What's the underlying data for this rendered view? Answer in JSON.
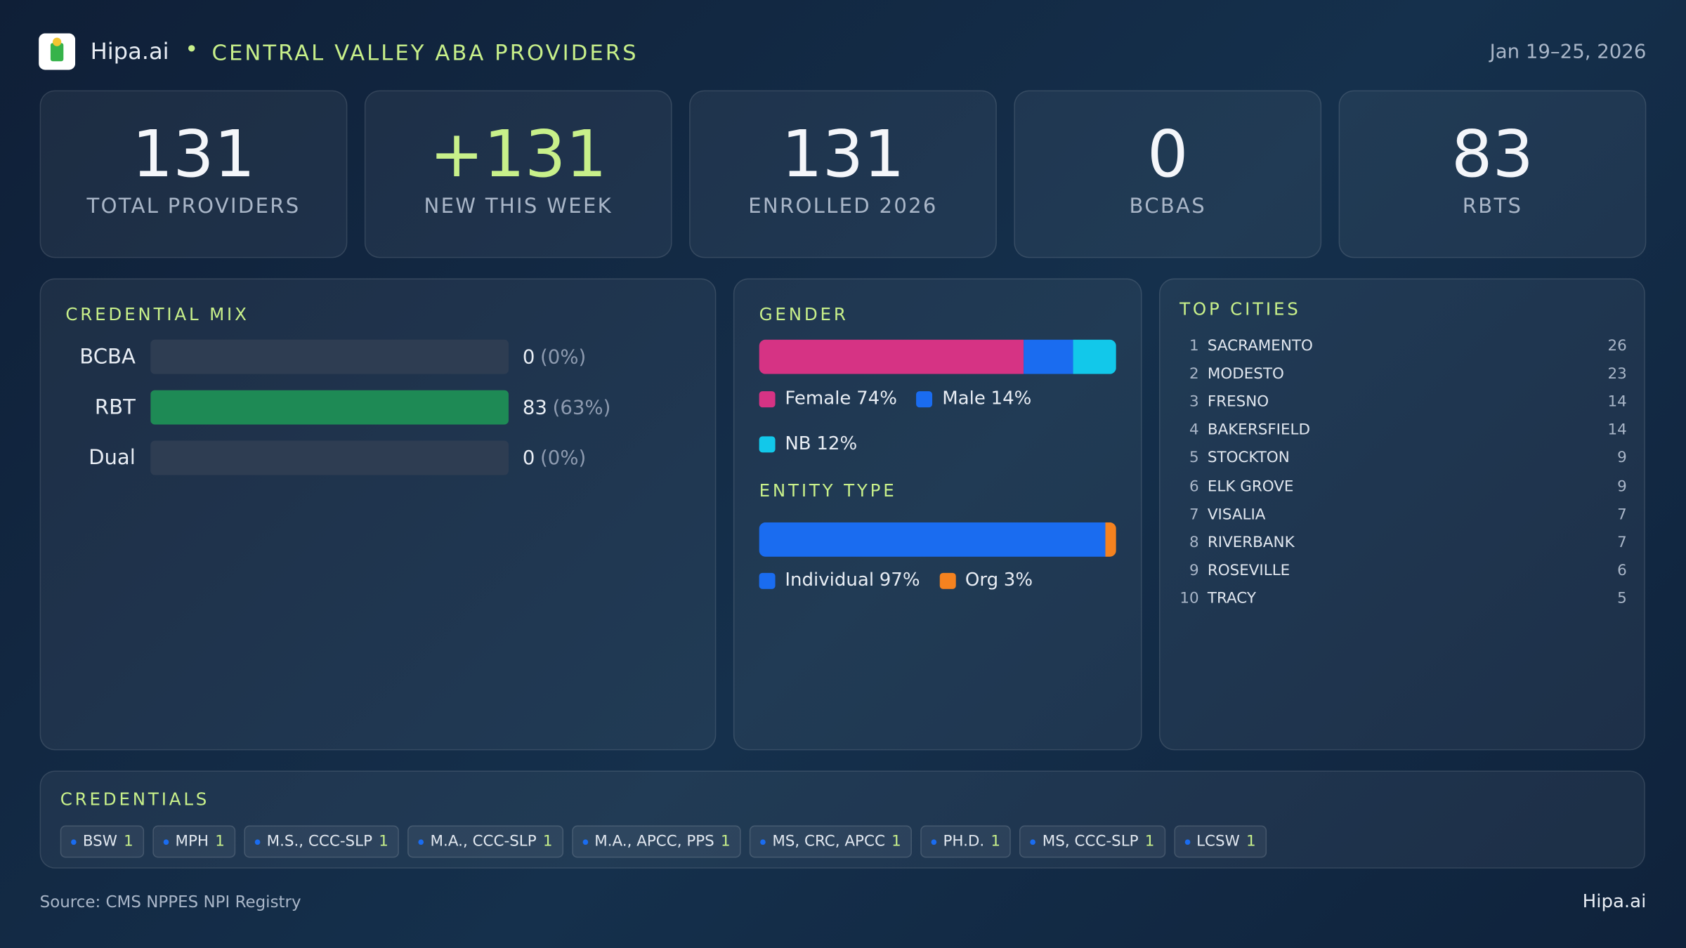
{
  "header": {
    "brand": "Hipa.ai",
    "title": "CENTRAL VALLEY ABA PROVIDERS",
    "date": "Jan 19–25, 2026"
  },
  "kpis": [
    {
      "value": 131,
      "label": "TOTAL PROVIDERS"
    },
    {
      "value": "+131",
      "label": "NEW THIS WEEK"
    },
    {
      "value": 131,
      "label": "ENROLLED 2026"
    },
    {
      "value": 0,
      "label": "BCBAS"
    },
    {
      "value": 83,
      "label": "RBTS"
    }
  ],
  "credential_mix": {
    "title": "CREDENTIAL MIX",
    "bar_color": "#1e8a55",
    "rows": [
      {
        "name": "BCBA",
        "value": 0,
        "pct_label": "(0%)"
      },
      {
        "name": "RBT",
        "value": 83,
        "pct_label": "(63%)"
      },
      {
        "name": "Dual",
        "value": 0,
        "pct_label": "(0%)"
      }
    ]
  },
  "gender": {
    "title": "GENDER",
    "segments": [
      {
        "name": "Female",
        "value": 74,
        "label": "74%",
        "color": "#d63384"
      },
      {
        "name": "Male",
        "value": 14,
        "label": "14%",
        "color": "#1a6cf0"
      },
      {
        "name": "NB",
        "value": 12,
        "label": "12%",
        "color": "#12c8ea"
      }
    ]
  },
  "entity_type": {
    "title": "ENTITY TYPE",
    "segments": [
      {
        "name": "Individual",
        "value": 97,
        "label": "97%",
        "color": "#1a6cf0"
      },
      {
        "name": "Org",
        "value": 3,
        "label": "3%",
        "color": "#f5821f"
      }
    ]
  },
  "top_cities": {
    "title": "TOP CITIES",
    "rows": [
      {
        "rank": 1,
        "name": "SACRAMENTO",
        "count": 26
      },
      {
        "rank": 2,
        "name": "MODESTO",
        "count": 23
      },
      {
        "rank": 3,
        "name": "FRESNO",
        "count": 14
      },
      {
        "rank": 4,
        "name": "BAKERSFIELD",
        "count": 14
      },
      {
        "rank": 5,
        "name": "STOCKTON",
        "count": 9
      },
      {
        "rank": 6,
        "name": "ELK GROVE",
        "count": 9
      },
      {
        "rank": 7,
        "name": "VISALIA",
        "count": 7
      },
      {
        "rank": 8,
        "name": "RIVERBANK",
        "count": 7
      },
      {
        "rank": 9,
        "name": "ROSEVILLE",
        "count": 6
      },
      {
        "rank": 10,
        "name": "TRACY",
        "count": 5
      }
    ]
  },
  "credentials": {
    "title": "CREDENTIALS",
    "chips": [
      {
        "name": "BSW",
        "count": 1
      },
      {
        "name": "MPH",
        "count": 1
      },
      {
        "name": "M.S., CCC-SLP",
        "count": 1
      },
      {
        "name": "M.A., CCC-SLP",
        "count": 1
      },
      {
        "name": "M.A., APCC, PPS",
        "count": 1
      },
      {
        "name": "MS, CRC, APCC",
        "count": 1
      },
      {
        "name": "PH.D.",
        "count": 1
      },
      {
        "name": "MS, CCC-SLP",
        "count": 1
      },
      {
        "name": "LCSW",
        "count": 1
      }
    ]
  },
  "footer": {
    "source": "Source: CMS NPPES NPI Registry",
    "brand": "Hipa.ai"
  }
}
